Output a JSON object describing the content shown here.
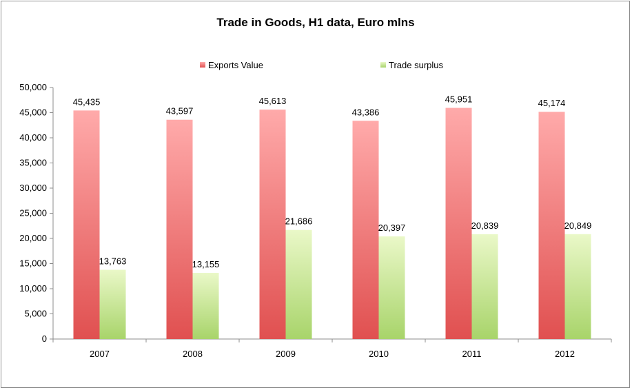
{
  "chart_data": {
    "type": "bar",
    "title": "Trade in Goods, H1 data, Euro mlns",
    "xlabel": "",
    "ylabel": "",
    "categories": [
      "2007",
      "2008",
      "2009",
      "2010",
      "2011",
      "2012"
    ],
    "series": [
      {
        "name": "Exports Value",
        "values": [
          45435,
          43597,
          45613,
          43386,
          45951,
          45174
        ],
        "labels": [
          "45,435",
          "43,597",
          "45,613",
          "43,386",
          "45,951",
          "45,174"
        ],
        "color_top": "#ffaaaa",
        "color_bottom": "#e05050"
      },
      {
        "name": "Trade surplus",
        "values": [
          13763,
          13155,
          21686,
          20397,
          20839,
          20849
        ],
        "labels": [
          "13,763",
          "13,155",
          "21,686",
          "20,397",
          "20,839",
          "20,849"
        ],
        "color_top": "#eaf8c8",
        "color_bottom": "#a8d46a"
      }
    ],
    "ylim": [
      0,
      50000
    ],
    "yticks": [
      0,
      5000,
      10000,
      15000,
      20000,
      25000,
      30000,
      35000,
      40000,
      45000,
      50000
    ],
    "ytick_labels": [
      "0",
      "5,000",
      "10,000",
      "15,000",
      "20,000",
      "25,000",
      "30,000",
      "35,000",
      "40,000",
      "45,000",
      "50,000"
    ],
    "grid": false,
    "legend_position": "top"
  }
}
